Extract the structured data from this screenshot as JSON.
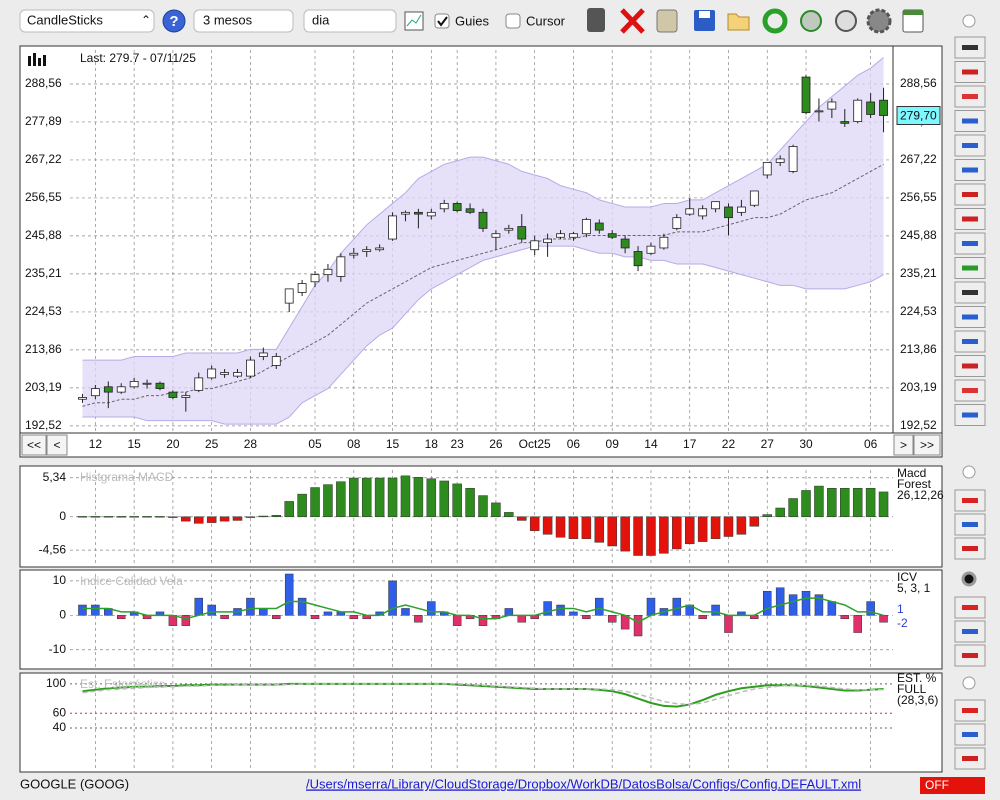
{
  "toolbar": {
    "chart_type": "CandleSticks",
    "help": "?",
    "period": "3 mesos",
    "interval": "dia",
    "guides": "Guies",
    "guides_checked": true,
    "cursor": "Cursor",
    "cursor_checked": false
  },
  "main_chart": {
    "type": "candlestick",
    "last": "Last: 279.7 - 07/11/25",
    "price_label": "279,70",
    "categories": [
      null,
      "12",
      null,
      null,
      "15",
      null,
      null,
      "20",
      null,
      null,
      "25",
      null,
      null,
      "28",
      null,
      null,
      null,
      null,
      "05",
      null,
      null,
      "08",
      null,
      null,
      "15",
      null,
      null,
      "18",
      null,
      "23",
      null,
      null,
      "26",
      null,
      null,
      "Oct25",
      null,
      null,
      "06",
      null,
      null,
      "09",
      null,
      null,
      "14",
      null,
      null,
      "17",
      null,
      null,
      "22",
      null,
      null,
      "27",
      null,
      null,
      "30",
      null,
      null,
      null,
      null,
      "06",
      null
    ],
    "open": [
      200.0,
      201.0,
      203.5,
      202.0,
      203.5,
      204.5,
      204.5,
      202.0,
      200.5,
      202.5,
      206.0,
      207.0,
      206.5,
      206.5,
      212.0,
      209.5,
      227.0,
      230.0,
      233.0,
      235.0,
      234.5,
      240.5,
      241.5,
      242.0,
      245.0,
      252.0,
      252.5,
      251.5,
      253.5,
      255.0,
      253.5,
      252.5,
      245.5,
      247.5,
      248.5,
      242.0,
      244.0,
      245.5,
      245.5,
      246.5,
      249.5,
      246.5,
      245.0,
      241.5,
      241.0,
      242.5,
      248.0,
      252.0,
      251.5,
      253.5,
      254.0,
      252.5,
      254.5,
      263.0,
      266.5,
      264.0,
      290.5,
      281.0,
      281.5,
      278.0,
      278.0,
      283.5,
      284.0
    ],
    "high": [
      201.5,
      204.0,
      205.0,
      204.5,
      206.0,
      205.5,
      205.0,
      202.5,
      202.0,
      207.5,
      209.5,
      208.5,
      208.5,
      212.0,
      214.5,
      213.0,
      231.0,
      233.5,
      236.0,
      238.0,
      241.0,
      242.5,
      243.0,
      243.5,
      252.5,
      253.0,
      253.5,
      253.5,
      256.0,
      255.5,
      255.0,
      253.5,
      247.5,
      249.0,
      252.0,
      246.0,
      246.5,
      247.5,
      247.0,
      251.0,
      250.5,
      247.5,
      246.0,
      243.0,
      244.0,
      246.5,
      252.0,
      256.5,
      254.5,
      255.5,
      255.0,
      256.0,
      258.5,
      266.5,
      268.5,
      271.5,
      291.0,
      284.5,
      284.5,
      281.5,
      284.5,
      286.0,
      287.5
    ],
    "low": [
      199.0,
      200.0,
      197.5,
      201.5,
      203.0,
      203.0,
      202.5,
      200.0,
      196.5,
      202.0,
      205.5,
      206.0,
      206.0,
      206.0,
      211.0,
      208.5,
      224.5,
      229.0,
      231.5,
      233.0,
      233.0,
      239.5,
      240.0,
      241.5,
      244.5,
      250.0,
      248.0,
      250.5,
      252.5,
      252.5,
      252.0,
      247.0,
      242.0,
      246.5,
      244.0,
      240.5,
      240.0,
      245.0,
      244.5,
      245.5,
      246.5,
      245.0,
      241.0,
      236.0,
      240.5,
      242.0,
      247.5,
      251.5,
      250.5,
      252.5,
      246.0,
      251.5,
      254.0,
      262.0,
      265.5,
      263.5,
      280.0,
      278.0,
      279.0,
      276.5,
      277.5,
      279.0,
      275.0
    ],
    "close": [
      200.5,
      203.0,
      202.0,
      203.5,
      205.0,
      204.5,
      203.0,
      200.5,
      201.0,
      206.0,
      208.5,
      207.5,
      207.5,
      211.0,
      213.0,
      212.0,
      231.0,
      232.5,
      235.0,
      236.5,
      240.0,
      241.0,
      242.0,
      242.5,
      251.5,
      252.5,
      252.0,
      252.5,
      255.0,
      253.0,
      252.5,
      248.0,
      246.5,
      248.0,
      245.0,
      244.5,
      245.0,
      246.5,
      246.5,
      250.5,
      247.5,
      245.5,
      242.5,
      237.5,
      243.0,
      245.5,
      251.0,
      253.5,
      253.5,
      255.5,
      251.0,
      254.0,
      258.5,
      266.5,
      267.5,
      271.0,
      280.5,
      281.0,
      283.5,
      277.5,
      284.0,
      280.0,
      279.7
    ],
    "up_color": "#ffffff",
    "down_color": "#2e8b1e",
    "band": {
      "color": "#ddd6f7",
      "upper": [
        211,
        211,
        211,
        211,
        212,
        212,
        212,
        212,
        213,
        213,
        213,
        213,
        213,
        214,
        214,
        214,
        220,
        226,
        232,
        236,
        241,
        245,
        249,
        252,
        255,
        258,
        262,
        264,
        266,
        267,
        268,
        268,
        267,
        266,
        264,
        263,
        262,
        260,
        259,
        258,
        256,
        255,
        254,
        254,
        254,
        255,
        255,
        256,
        256,
        258,
        260,
        262,
        264,
        266,
        270,
        274,
        278,
        282,
        285,
        288,
        291,
        293,
        296
      ],
      "middle": [
        198,
        199,
        199,
        200,
        200,
        201,
        201,
        202,
        202,
        203,
        203,
        204,
        205,
        206,
        208,
        210,
        212,
        214,
        216,
        218,
        221,
        224,
        227,
        229,
        231,
        233,
        235,
        237,
        238,
        239,
        240,
        241,
        242,
        243,
        244,
        244,
        245,
        245,
        245,
        246,
        246,
        246,
        246,
        246,
        246,
        246,
        247,
        247,
        247,
        248,
        249,
        250,
        251,
        251,
        252,
        254,
        256,
        257,
        258,
        260,
        262,
        264,
        266
      ],
      "lower": [
        195,
        195,
        195,
        195,
        195,
        194,
        194,
        194,
        194,
        194,
        194,
        193,
        193,
        193,
        193,
        193,
        195,
        199,
        201,
        203,
        207,
        211,
        215,
        218,
        220,
        224,
        228,
        231,
        233,
        235,
        237,
        239,
        240,
        241,
        242,
        243,
        243,
        243,
        243,
        242,
        241,
        241,
        240,
        240,
        239,
        239,
        238,
        238,
        238,
        237,
        236,
        235,
        234,
        233,
        232,
        232,
        231,
        231,
        231,
        231,
        232,
        233,
        235
      ]
    },
    "ylim": [
      190.8,
      298.1
    ],
    "yticks": [
      {
        "value": 192.52,
        "label": "192,52"
      },
      {
        "value": 203.19,
        "label": "203,19"
      },
      {
        "value": 213.86,
        "label": "213,86"
      },
      {
        "value": 224.53,
        "label": "224,53"
      },
      {
        "value": 235.21,
        "label": "235,21"
      },
      {
        "value": 245.88,
        "label": "245,88"
      },
      {
        "value": 256.55,
        "label": "256,55"
      },
      {
        "value": 267.22,
        "label": "267,22"
      },
      {
        "value": 277.89,
        "label": "277,89"
      },
      {
        "value": 288.56,
        "label": "288,56"
      }
    ],
    "grid": true
  },
  "macd": {
    "type": "bar",
    "title": "Histgrama MACD",
    "legend": [
      "Macd",
      "Forest",
      "26,12,26"
    ],
    "values": [
      0.05,
      0.05,
      0.05,
      0.05,
      0.05,
      0.05,
      0.05,
      -0.1,
      -0.6,
      -0.9,
      -0.8,
      -0.6,
      -0.5,
      -0.1,
      0.1,
      0.2,
      2.1,
      3.1,
      4.0,
      4.4,
      4.8,
      5.3,
      5.3,
      5.3,
      5.3,
      5.6,
      5.4,
      5.2,
      4.9,
      4.5,
      3.9,
      2.9,
      1.9,
      0.6,
      -0.5,
      -1.9,
      -2.4,
      -2.8,
      -3.0,
      -3.0,
      -3.5,
      -4.0,
      -4.7,
      -5.3,
      -5.3,
      -5.0,
      -4.4,
      -3.7,
      -3.4,
      -3.0,
      -2.7,
      -2.4,
      -1.3,
      0.3,
      1.2,
      2.5,
      3.6,
      4.2,
      3.9,
      3.9,
      3.9,
      3.9,
      3.4
    ],
    "positive_color": "#2e8b1e",
    "negative_color": "#e3120b",
    "ylim": [
      -6.6,
      6.4
    ],
    "yticks": [
      {
        "value": -4.56,
        "label": "-4,56"
      },
      0,
      {
        "value": 5.34,
        "label": "5,34"
      }
    ]
  },
  "icv": {
    "type": "bar",
    "title": "Indice Calidad Vela",
    "legend": [
      "ICV",
      "5, 3, 1",
      "1",
      "-2"
    ],
    "values": [
      3,
      3,
      2,
      -1,
      1,
      -1,
      1,
      -3,
      -3,
      5,
      3,
      -1,
      2,
      5,
      2,
      -1,
      12,
      5,
      -1,
      1,
      1,
      -1,
      -1,
      1,
      10,
      2,
      -2,
      4,
      1,
      -3,
      -1,
      -3,
      -1,
      2,
      -2,
      -1,
      4,
      3,
      1,
      -1,
      5,
      -2,
      -4,
      -6,
      5,
      2,
      5,
      3,
      -1,
      3,
      -5,
      1,
      -1,
      7,
      8,
      6,
      7,
      6,
      4,
      -1,
      -5,
      4,
      -2
    ],
    "signal": {
      "color": "#2ca02c",
      "values": [
        2,
        2,
        2,
        1,
        1,
        0,
        0,
        0,
        -1,
        0,
        1,
        1,
        1,
        2,
        2,
        2,
        4,
        4,
        3,
        2,
        1,
        1,
        0,
        0,
        2,
        3,
        2,
        1,
        1,
        0,
        0,
        -1,
        -1,
        0,
        0,
        0,
        1,
        2,
        2,
        1,
        2,
        1,
        0,
        -2,
        0,
        1,
        2,
        3,
        1,
        1,
        0,
        0,
        0,
        2,
        3,
        4,
        5,
        5,
        4,
        3,
        1,
        1,
        0
      ]
    },
    "positive_color": "#2f5ee8",
    "negative_color": "#e0306a",
    "ylim": [
      -15,
      12
    ],
    "yticks": [
      -10,
      0,
      10
    ]
  },
  "stochastic": {
    "type": "line",
    "title": "Est. Estocástico",
    "legend": [
      "EST. %",
      "FULL",
      "(28,3,6)"
    ],
    "series": [
      {
        "color": "#2e9e1e",
        "values": [
          90,
          92,
          94,
          95,
          96,
          96,
          97,
          97,
          98,
          98,
          99,
          99,
          99,
          99,
          99,
          99,
          100,
          100,
          100,
          100,
          100,
          100,
          100,
          100,
          100,
          100,
          100,
          100,
          100,
          99,
          98,
          97,
          96,
          95,
          94,
          93,
          93,
          93,
          93,
          93,
          92,
          90,
          86,
          80,
          74,
          70,
          69,
          72,
          78,
          85,
          90,
          94,
          96,
          98,
          98,
          98,
          97,
          95,
          93,
          91,
          91,
          92,
          93
        ]
      },
      {
        "color": "#bbbbbb",
        "values": [
          88,
          90,
          92,
          93,
          94,
          95,
          96,
          96,
          97,
          97,
          98,
          98,
          99,
          99,
          99,
          99,
          99,
          100,
          100,
          100,
          100,
          100,
          100,
          100,
          100,
          100,
          100,
          100,
          100,
          100,
          99,
          98,
          97,
          96,
          95,
          94,
          93,
          93,
          93,
          93,
          93,
          92,
          90,
          86,
          81,
          76,
          73,
          72,
          74,
          79,
          84,
          89,
          93,
          95,
          97,
          98,
          98,
          97,
          95,
          93,
          92,
          92,
          92
        ]
      }
    ],
    "ylim": [
      -17,
      112
    ],
    "yticks": [
      40,
      60,
      100
    ]
  },
  "navigation": [
    "<<",
    "<",
    ">",
    ">>"
  ],
  "status": {
    "symbol": "GOOGLE (GOOG)",
    "path": "/Users/mserra/Library/CloudStorage/Dropbox/WorkDB/DatosBolsa/Configs/Config.DEFAULT.xml",
    "state": "OFF"
  }
}
